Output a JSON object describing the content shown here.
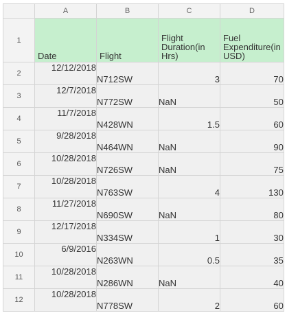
{
  "sheet": {
    "column_letters": [
      "A",
      "B",
      "C",
      "D"
    ],
    "header_row_number": "1",
    "headers": [
      "Date",
      "Flight",
      "Flight Duration(in Hrs)",
      "Fuel Expenditure(in USD)"
    ],
    "rows": [
      {
        "num": "2",
        "date": "12/12/2018",
        "flight": "N712SW",
        "duration": "3",
        "duration_is_text": false,
        "fuel": "70"
      },
      {
        "num": "3",
        "date": "12/7/2018",
        "flight": "N772SW",
        "duration": "NaN",
        "duration_is_text": true,
        "fuel": "50"
      },
      {
        "num": "4",
        "date": "11/7/2018",
        "flight": "N428WN",
        "duration": "1.5",
        "duration_is_text": false,
        "fuel": "60"
      },
      {
        "num": "5",
        "date": "9/28/2018",
        "flight": "N464WN",
        "duration": "NaN",
        "duration_is_text": true,
        "fuel": "90"
      },
      {
        "num": "6",
        "date": "10/28/2018",
        "flight": "N726SW",
        "duration": "NaN",
        "duration_is_text": true,
        "fuel": "75"
      },
      {
        "num": "7",
        "date": "10/28/2018",
        "flight": "N763SW",
        "duration": "4",
        "duration_is_text": false,
        "fuel": "130"
      },
      {
        "num": "8",
        "date": "11/27/2018",
        "flight": "N690SW",
        "duration": "NaN",
        "duration_is_text": true,
        "fuel": "80"
      },
      {
        "num": "9",
        "date": "12/17/2018",
        "flight": "N334SW",
        "duration": "1",
        "duration_is_text": false,
        "fuel": "30"
      },
      {
        "num": "10",
        "date": "6/9/2016",
        "flight": "N263WN",
        "duration": "0.5",
        "duration_is_text": false,
        "fuel": "35"
      },
      {
        "num": "11",
        "date": "10/28/2018",
        "flight": "N286WN",
        "duration": "NaN",
        "duration_is_text": true,
        "fuel": "40"
      },
      {
        "num": "12",
        "date": "10/28/2018",
        "flight": "N778SW",
        "duration": "2",
        "duration_is_text": false,
        "fuel": "60"
      }
    ],
    "colors": {
      "header_fill": "#c6efce",
      "cell_fill": "#f0f0f0",
      "gridline": "#d4d4d4",
      "row_col_header_fill": "#f3f3f3"
    }
  }
}
